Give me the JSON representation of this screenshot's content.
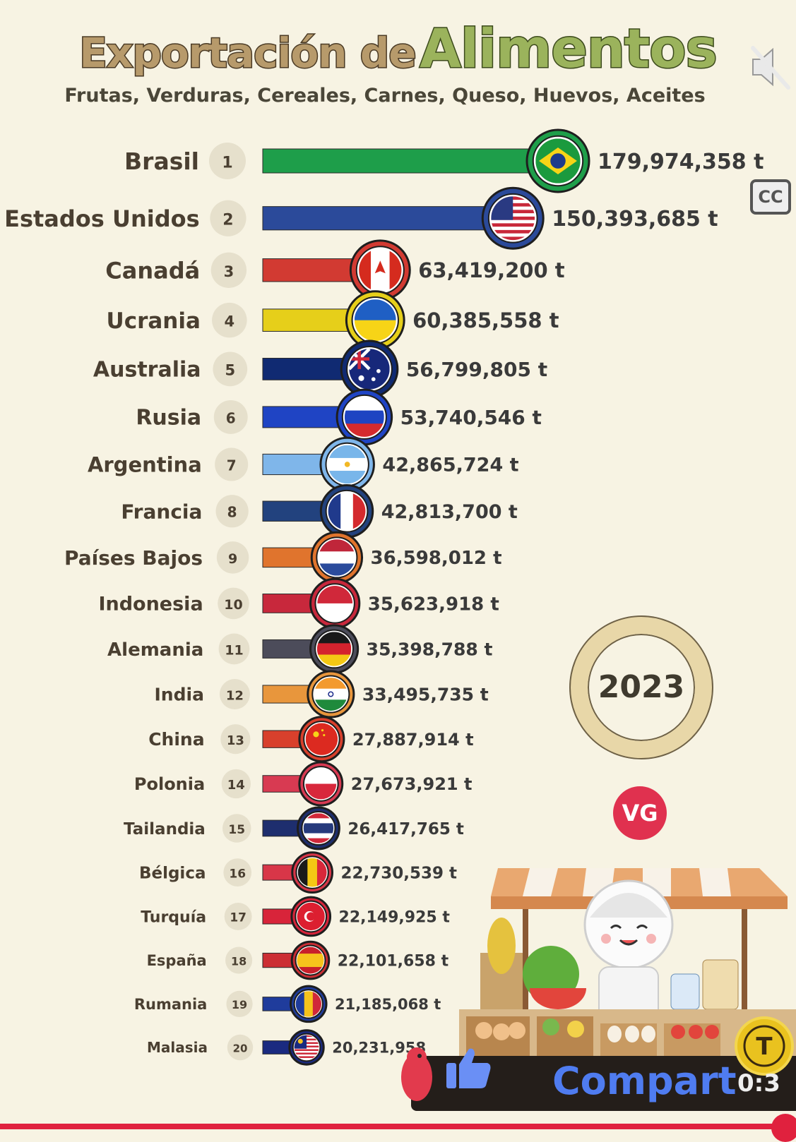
{
  "header": {
    "title_part1": "Exportación de",
    "title_part2": "Alimentos",
    "subtitle": "Frutas, Verduras, Cereales, Carnes, Queso, Huevos, Aceites"
  },
  "year": "2023",
  "logo": "VG",
  "controls": {
    "cc_label": "CC",
    "mute_icon": "speaker-muted-icon",
    "share_label": "Compart",
    "timer": "0:3"
  },
  "chart_data": {
    "type": "bar",
    "orientation": "horizontal",
    "unit": "t",
    "categories": [
      "Brasil",
      "Estados Unidos",
      "Canadá",
      "Ucrania",
      "Australia",
      "Rusia",
      "Argentina",
      "Francia",
      "Países Bajos",
      "Indonesia",
      "Alemania",
      "India",
      "China",
      "Polonia",
      "Tailandia",
      "Bélgica",
      "Turquía",
      "España",
      "Rumania",
      "Malasia"
    ],
    "ranks": [
      1,
      2,
      3,
      4,
      5,
      6,
      7,
      8,
      9,
      10,
      11,
      12,
      13,
      14,
      15,
      16,
      17,
      18,
      19,
      20
    ],
    "values": [
      179974358,
      150393685,
      63419200,
      60385558,
      56799805,
      53740546,
      42865724,
      42813700,
      36598012,
      35623918,
      35398788,
      33495735,
      27887914,
      27673921,
      26417765,
      22730539,
      22149925,
      22101658,
      21185068,
      20231958
    ],
    "value_labels": [
      "179,974,358 t",
      "150,393,685 t",
      "63,419,200 t",
      "60,385,558 t",
      "56,799,805 t",
      "53,740,546 t",
      "42,865,724 t",
      "42,813,700 t",
      "36,598,012 t",
      "35,623,918 t",
      "35,398,788 t",
      "33,495,735 t",
      "27,887,914 t",
      "27,673,921 t",
      "26,417,765 t",
      "22,730,539 t",
      "22,149,925 t",
      "22,101,658 t",
      "21,185,068 t",
      "20,231,958"
    ],
    "colors": [
      "#1e9e4a",
      "#2b4a9a",
      "#d23a32",
      "#e6cf1a",
      "#102a72",
      "#1f44c4",
      "#7fb6ea",
      "#22427e",
      "#e0742d",
      "#c8283c",
      "#4c4c5a",
      "#e8963c",
      "#d8402c",
      "#d83a52",
      "#1e2e6e",
      "#d83648",
      "#d8243a",
      "#cc2e34",
      "#1f3c9c",
      "#1a2a80"
    ],
    "flags": [
      "brazil",
      "usa",
      "canada",
      "ukraine",
      "australia",
      "russia",
      "argentina",
      "france",
      "netherlands",
      "indonesia",
      "germany",
      "india",
      "china",
      "poland",
      "thailand",
      "belgium",
      "turkey",
      "spain",
      "romania",
      "malaysia"
    ],
    "xlim": [
      0,
      179974358
    ]
  }
}
